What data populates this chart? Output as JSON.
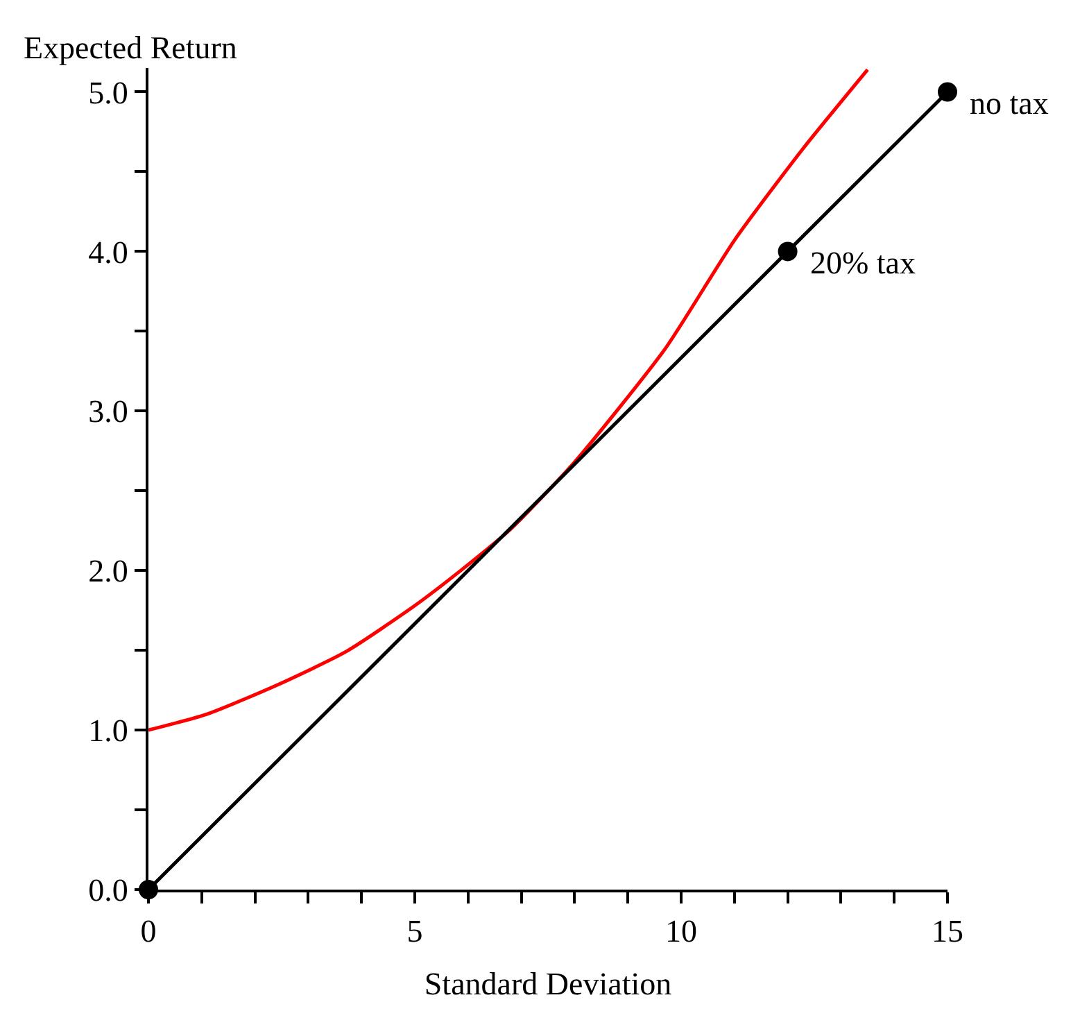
{
  "chart_data": {
    "type": "line",
    "xlabel": "Standard Deviation",
    "ylabel": "Expected Return",
    "xlim": [
      0,
      15
    ],
    "ylim": [
      0,
      5.15
    ],
    "xticks": [
      0,
      {
        "value": 1,
        "label": null
      },
      {
        "value": 2,
        "label": null
      },
      {
        "value": 3,
        "label": null
      },
      {
        "value": 4,
        "label": null
      },
      5,
      {
        "value": 6,
        "label": null
      },
      {
        "value": 7,
        "label": null
      },
      {
        "value": 8,
        "label": null
      },
      {
        "value": 9,
        "label": null
      },
      10,
      {
        "value": 11,
        "label": null
      },
      {
        "value": 12,
        "label": null
      },
      {
        "value": 13,
        "label": null
      },
      {
        "value": 14,
        "label": null
      },
      15
    ],
    "yticks": [
      {
        "value": 0,
        "label": "0.0"
      },
      {
        "value": 0.5,
        "label": null
      },
      {
        "value": 1,
        "label": "1.0"
      },
      {
        "value": 1.5,
        "label": null
      },
      {
        "value": 2,
        "label": "2.0"
      },
      {
        "value": 2.5,
        "label": null
      },
      {
        "value": 3,
        "label": "3.0"
      },
      {
        "value": 3.5,
        "label": null
      },
      {
        "value": 4,
        "label": "4.0"
      },
      {
        "value": 4.5,
        "label": null
      },
      {
        "value": 5,
        "label": "5.0"
      }
    ],
    "grid": false,
    "line_style": "solid",
    "series": [
      {
        "color": "#ff0000",
        "marker": "none",
        "x": [
          0,
          1.1,
          2.4,
          3.7,
          5.0,
          5.9,
          6.8,
          8.0,
          9.7,
          11.0,
          12.3,
          13.5
        ],
        "values": [
          1.0,
          1.1,
          1.28,
          1.49,
          1.78,
          2.01,
          2.26,
          2.68,
          3.39,
          4.07,
          4.65,
          5.14
        ]
      },
      {
        "color": "#000000",
        "marker": "circle",
        "x": [
          0,
          12,
          15
        ],
        "values": [
          0,
          4,
          5
        ]
      }
    ],
    "annotations": [
      {
        "text": "no tax",
        "x": 15,
        "y": 5
      },
      {
        "text": "20% tax",
        "x": 12,
        "y": 4
      }
    ]
  }
}
